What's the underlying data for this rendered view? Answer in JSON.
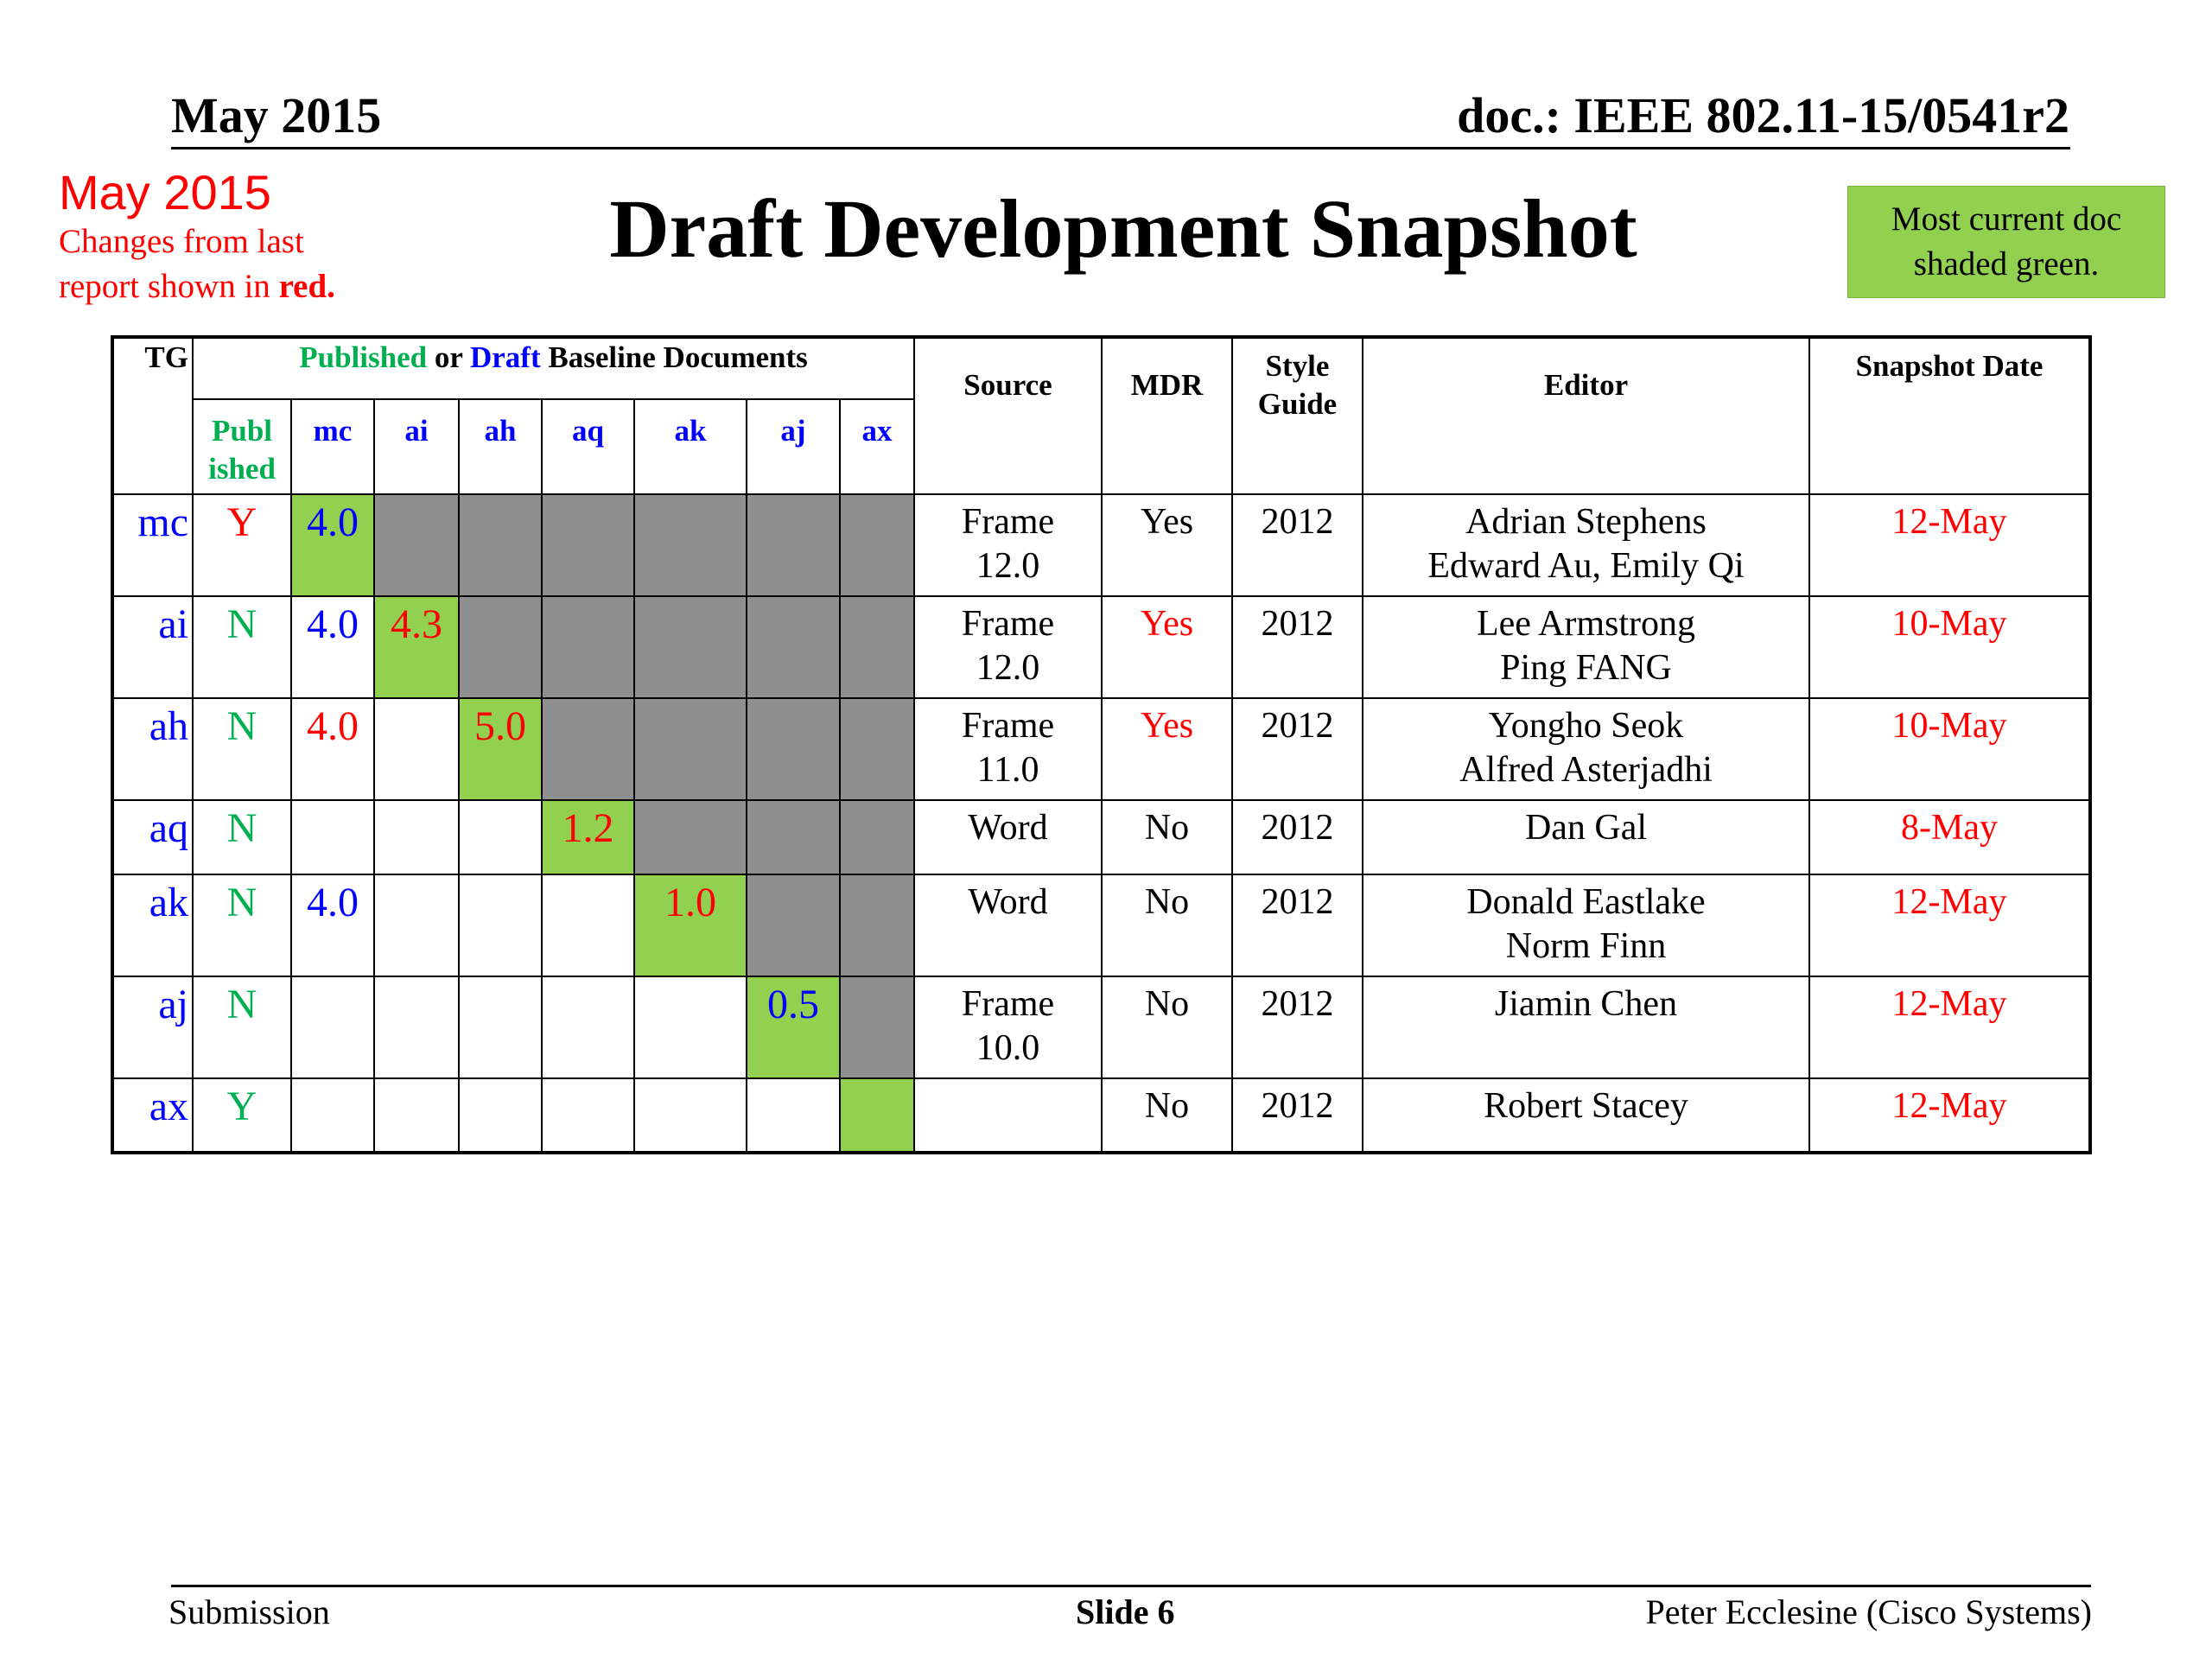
{
  "header": {
    "date": "May 2015",
    "doc": "doc.: IEEE 802.11-15/0541r2"
  },
  "note": {
    "date": "May 2015",
    "line1": "Changes from  last",
    "line2": "report shown in ",
    "line2_bold": "red."
  },
  "title": "Draft Development Snapshot",
  "legend": {
    "line1": "Most current doc",
    "line2": "shaded green."
  },
  "table": {
    "headers": {
      "tg": "TG",
      "baseline_published": "Published",
      "baseline_or": " or ",
      "baseline_draft": "Draft",
      "baseline_rest": " Baseline Documents",
      "published_top": "Publ",
      "published_bottom": "ished",
      "sub": [
        "mc",
        "ai",
        "ah",
        "aq",
        "ak",
        "aj",
        "ax"
      ],
      "source": "Source",
      "mdr": "MDR",
      "style_top": "Style",
      "style_bottom": "Guide",
      "editor": "Editor",
      "snapshot": "Snapshot Date"
    },
    "rows": [
      {
        "tg": "mc",
        "published": "Y",
        "base": [
          "4.0",
          "",
          "",
          "",
          "",
          "",
          ""
        ],
        "source": [
          "Frame",
          "12.0"
        ],
        "mdr": "Yes",
        "style": "2012",
        "editor": [
          "Adrian Stephens",
          "Edward Au, Emily Qi"
        ],
        "date": "12-May"
      },
      {
        "tg": "ai",
        "published": "N",
        "base": [
          "4.0",
          "4.3",
          "",
          "",
          "",
          "",
          ""
        ],
        "source": [
          "Frame",
          "12.0"
        ],
        "mdr": "Yes",
        "style": "2012",
        "editor": [
          "Lee Armstrong",
          "Ping FANG"
        ],
        "date": "10-May"
      },
      {
        "tg": "ah",
        "published": "N",
        "base": [
          "4.0",
          "",
          "5.0",
          "",
          "",
          "",
          ""
        ],
        "source": [
          "Frame",
          "11.0"
        ],
        "mdr": "Yes",
        "style": "2012",
        "editor": [
          "Yongho Seok",
          "Alfred Asterjadhi"
        ],
        "date": "10-May"
      },
      {
        "tg": "aq",
        "published": "N",
        "base": [
          "",
          "",
          "",
          "1.2",
          "",
          "",
          ""
        ],
        "source": [
          "Word",
          ""
        ],
        "mdr": "No",
        "style": "2012",
        "editor": [
          "Dan Gal",
          ""
        ],
        "date": "8-May"
      },
      {
        "tg": "ak",
        "published": "N",
        "base": [
          "4.0",
          "",
          "",
          "",
          "1.0",
          "",
          ""
        ],
        "source": [
          "Word",
          ""
        ],
        "mdr": "No",
        "style": "2012",
        "editor": [
          "Donald Eastlake",
          "Norm Finn"
        ],
        "date": "12-May"
      },
      {
        "tg": "aj",
        "published": "N",
        "base": [
          "",
          "",
          "",
          "",
          "",
          "0.5",
          ""
        ],
        "source": [
          "Frame",
          "10.0"
        ],
        "mdr": "No",
        "style": "2012",
        "editor": [
          "Jiamin Chen",
          ""
        ],
        "date": "12-May"
      },
      {
        "tg": "ax",
        "published": "Y",
        "base": [
          "",
          "",
          "",
          "",
          "",
          "",
          ""
        ],
        "source": [
          "",
          ""
        ],
        "mdr": "No",
        "style": "2012",
        "editor": [
          "Robert Stacey",
          ""
        ],
        "date": "12-May"
      }
    ],
    "colors": {
      "current": "#92d050",
      "na": "#8f8f8f",
      "changed": "#ff0000",
      "tg": "#0000ff",
      "published": "#00b050"
    }
  },
  "footer": {
    "left": "Submission",
    "center": "Slide 6",
    "right": "Peter Ecclesine (Cisco Systems)"
  }
}
